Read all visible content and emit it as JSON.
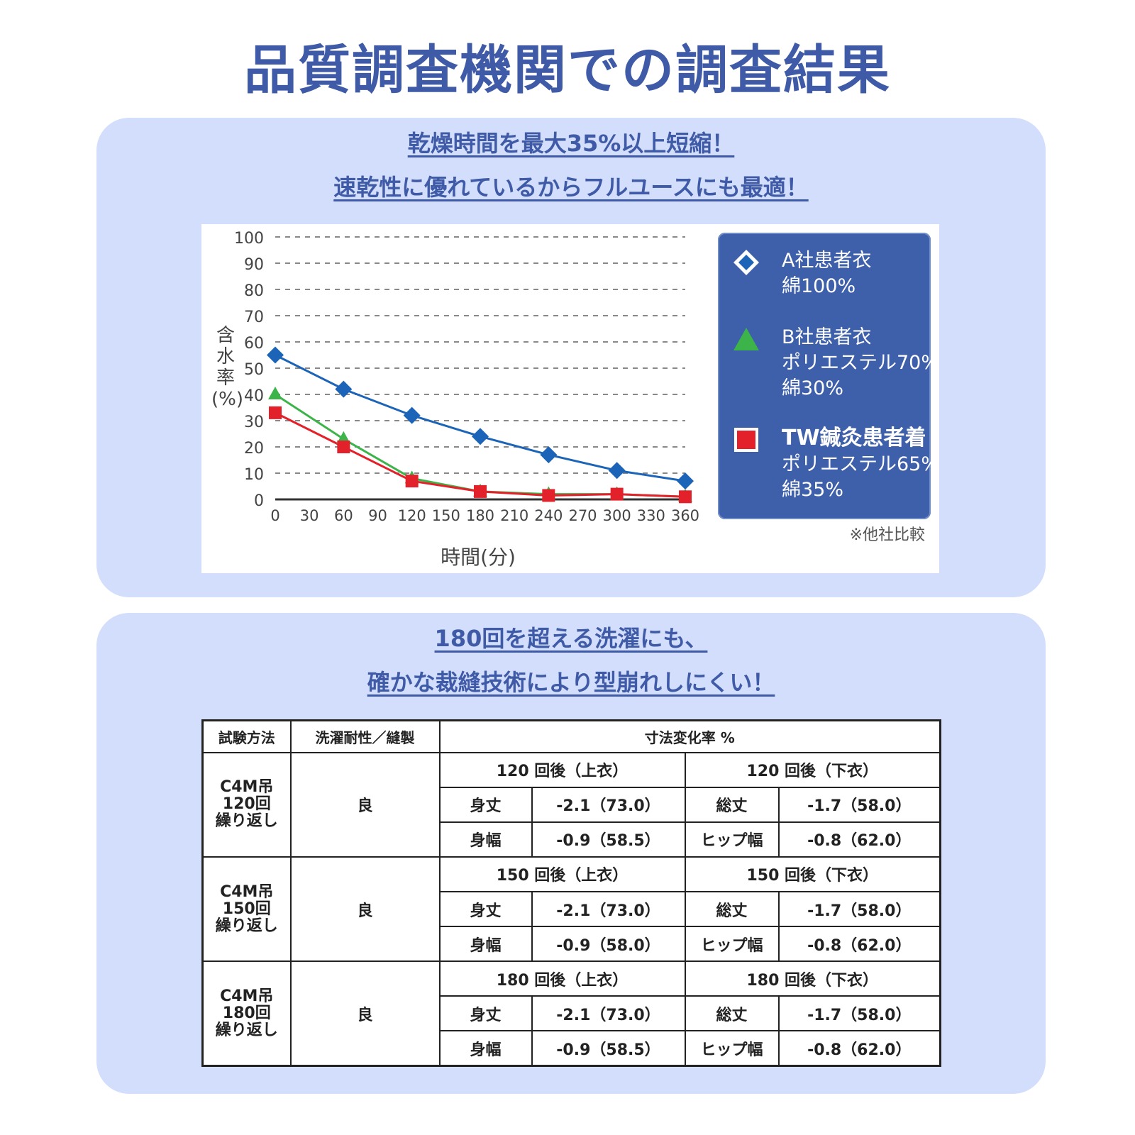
{
  "page": {
    "title": "品質調査機関での調査結果"
  },
  "section1": {
    "headline1": "乾燥時間を最大35%以上短縮！",
    "headline2": "速乾性に優れているからフルユースにも最適！",
    "y_title": "含水率(%)",
    "x_title": "時間(分)",
    "note": "※他社比較"
  },
  "chart_data": {
    "type": "line",
    "x": [
      0,
      60,
      120,
      180,
      240,
      300,
      360
    ],
    "x_ticks": [
      0,
      30,
      60,
      90,
      120,
      150,
      180,
      210,
      240,
      270,
      300,
      330,
      360
    ],
    "y_ticks": [
      0,
      10,
      20,
      30,
      40,
      50,
      60,
      70,
      80,
      90,
      100
    ],
    "xlim": [
      0,
      360
    ],
    "ylim": [
      0,
      100
    ],
    "xlabel": "時間(分)",
    "ylabel": "含水率(%)",
    "grid": "horizontal dashed",
    "legend_position": "right",
    "series": [
      {
        "name": "A社患者衣 綿100%",
        "marker": "diamond",
        "color": "#1c64b8",
        "values": [
          55,
          42,
          32,
          24,
          17,
          11,
          7
        ]
      },
      {
        "name": "B社患者衣 ポリエステル70% 綿30%",
        "marker": "triangle",
        "color": "#3cb44a",
        "values": [
          40,
          23,
          8,
          3,
          2,
          2,
          1
        ]
      },
      {
        "name": "TW鍼灸患者着 ポリエステル65% 綿35%",
        "marker": "square",
        "color": "#e3212b",
        "values": [
          33,
          20,
          7,
          3,
          1.5,
          2,
          1
        ]
      }
    ]
  },
  "legend": [
    {
      "line1": "A社患者衣",
      "line2": "綿100%",
      "marker": "diamond-icon",
      "color": "#1c64b8"
    },
    {
      "line1": "B社患者衣",
      "line2": "ポリエステル70%\n綿30%",
      "marker": "triangle-icon",
      "color": "#3cb44a"
    },
    {
      "line1": "TW鍼灸患者着",
      "line2": "ポリエステル65%\n綿35%",
      "marker": "square-icon",
      "color": "#e3212b"
    }
  ],
  "section2": {
    "headline1": "180回を超える洗濯にも、",
    "headline2": "確かな裁縫技術により型崩れしにくい！"
  },
  "table": {
    "headers": {
      "method": "試験方法",
      "durability": "洗濯耐性／縫製",
      "change": "寸法変化率 %"
    },
    "groups": [
      {
        "method": [
          "C4M吊",
          "120回",
          "繰り返し"
        ],
        "durability": "良",
        "upper_title": "120 回後（上衣）",
        "lower_title": "120 回後（下衣）",
        "rows": [
          {
            "ulabel": "身丈",
            "uvalue": "-2.1（73.0）",
            "llabel": "総丈",
            "lvalue": "-1.7（58.0）"
          },
          {
            "ulabel": "身幅",
            "uvalue": "-0.9（58.5）",
            "llabel": "ヒップ幅",
            "lvalue": "-0.8（62.0）"
          }
        ]
      },
      {
        "method": [
          "C4M吊",
          "150回",
          "繰り返し"
        ],
        "durability": "良",
        "upper_title": "150 回後（上衣）",
        "lower_title": "150 回後（下衣）",
        "rows": [
          {
            "ulabel": "身丈",
            "uvalue": "-2.1（73.0）",
            "llabel": "総丈",
            "lvalue": "-1.7（58.0）"
          },
          {
            "ulabel": "身幅",
            "uvalue": "-0.9（58.0）",
            "llabel": "ヒップ幅",
            "lvalue": "-0.8（62.0）"
          }
        ]
      },
      {
        "method": [
          "C4M吊",
          "180回",
          "繰り返し"
        ],
        "durability": "良",
        "upper_title": "180 回後（上衣）",
        "lower_title": "180 回後（下衣）",
        "rows": [
          {
            "ulabel": "身丈",
            "uvalue": "-2.1（73.0）",
            "llabel": "総丈",
            "lvalue": "-1.7（58.0）"
          },
          {
            "ulabel": "身幅",
            "uvalue": "-0.9（58.5）",
            "llabel": "ヒップ幅",
            "lvalue": "-0.8（62.0）"
          }
        ]
      }
    ]
  }
}
